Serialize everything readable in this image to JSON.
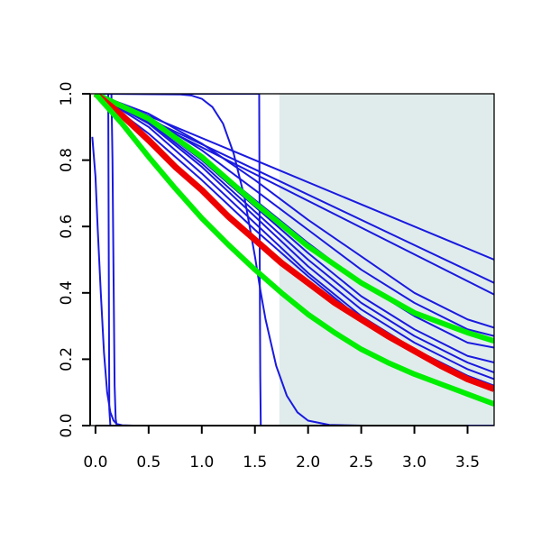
{
  "chart_data": {
    "type": "line",
    "title": "",
    "xlabel": "",
    "ylabel": "",
    "xlim": [
      -0.05,
      3.75
    ],
    "ylim": [
      0.0,
      1.0
    ],
    "x_ticks": [
      "0.0",
      "0.5",
      "1.0",
      "1.5",
      "2.0",
      "2.5",
      "3.0",
      "3.5"
    ],
    "y_ticks": [
      "0.0",
      "0.2",
      "0.4",
      "0.6",
      "0.8",
      "1.0"
    ],
    "shaded_region": {
      "x_from": 1.73,
      "x_to": 3.75,
      "color": "#e0ecec"
    },
    "grid": false,
    "legend": "none",
    "colors": {
      "blue": "#1a1adf",
      "red": "#ee0000",
      "green": "#00ee00"
    },
    "series": [
      {
        "color": "blue",
        "width": 2,
        "points": [
          [
            -0.03,
            0.87
          ],
          [
            0.0,
            0.75
          ],
          [
            0.02,
            0.6
          ],
          [
            0.05,
            0.4
          ],
          [
            0.08,
            0.22
          ],
          [
            0.11,
            0.1
          ],
          [
            0.14,
            0.04
          ],
          [
            0.17,
            0.015
          ],
          [
            0.2,
            0.005
          ],
          [
            0.25,
            0.001
          ],
          [
            0.35,
            0.0
          ],
          [
            3.75,
            0.0
          ]
        ]
      },
      {
        "color": "blue",
        "width": 2,
        "points": [
          [
            0.0,
            1.0
          ],
          [
            0.15,
            1.0
          ],
          [
            0.16,
            0.8
          ],
          [
            0.17,
            0.45
          ],
          [
            0.18,
            0.12
          ],
          [
            0.19,
            0.02
          ],
          [
            0.2,
            0.0
          ],
          [
            3.75,
            0.0
          ]
        ]
      },
      {
        "color": "blue",
        "width": 2,
        "points": [
          [
            0.1,
            1.0
          ],
          [
            0.12,
            1.0
          ],
          [
            0.125,
            0.5
          ],
          [
            0.13,
            0.05
          ],
          [
            0.14,
            0.0
          ]
        ]
      },
      {
        "color": "blue",
        "width": 2,
        "points": [
          [
            0.0,
            1.0
          ],
          [
            1.54,
            1.0
          ],
          [
            1.545,
            0.5
          ],
          [
            1.55,
            0.15
          ],
          [
            1.555,
            0.0
          ]
        ]
      },
      {
        "color": "blue",
        "width": 2,
        "points": [
          [
            0.0,
            1.0
          ],
          [
            0.8,
            0.998
          ],
          [
            0.9,
            0.995
          ],
          [
            1.0,
            0.985
          ],
          [
            1.1,
            0.96
          ],
          [
            1.2,
            0.91
          ],
          [
            1.3,
            0.82
          ],
          [
            1.4,
            0.69
          ],
          [
            1.5,
            0.51
          ],
          [
            1.55,
            0.41
          ],
          [
            1.6,
            0.32
          ],
          [
            1.7,
            0.18
          ],
          [
            1.8,
            0.09
          ],
          [
            1.9,
            0.04
          ],
          [
            2.0,
            0.015
          ],
          [
            2.2,
            0.002
          ],
          [
            2.5,
            0.0
          ],
          [
            3.75,
            0.0
          ]
        ]
      },
      {
        "color": "blue",
        "width": 2,
        "points": [
          [
            0.0,
            1.0
          ],
          [
            3.75,
            0.5
          ]
        ]
      },
      {
        "color": "blue",
        "width": 2,
        "points": [
          [
            0.0,
            1.0
          ],
          [
            3.75,
            0.43
          ]
        ]
      },
      {
        "color": "blue",
        "width": 2,
        "points": [
          [
            0.0,
            1.0
          ],
          [
            3.75,
            0.395
          ]
        ]
      },
      {
        "color": "blue",
        "width": 2,
        "points": [
          [
            0.0,
            1.0
          ],
          [
            0.5,
            0.94
          ],
          [
            1.0,
            0.85
          ],
          [
            1.5,
            0.74
          ],
          [
            2.0,
            0.62
          ],
          [
            2.5,
            0.51
          ],
          [
            3.0,
            0.4
          ],
          [
            3.5,
            0.32
          ],
          [
            3.75,
            0.295
          ]
        ]
      },
      {
        "color": "blue",
        "width": 2,
        "points": [
          [
            0.0,
            1.0
          ],
          [
            0.5,
            0.93
          ],
          [
            1.0,
            0.83
          ],
          [
            1.5,
            0.71
          ],
          [
            2.0,
            0.59
          ],
          [
            2.5,
            0.47
          ],
          [
            3.0,
            0.37
          ],
          [
            3.5,
            0.29
          ],
          [
            3.75,
            0.27
          ]
        ]
      },
      {
        "color": "blue",
        "width": 2,
        "points": [
          [
            0.0,
            1.0
          ],
          [
            0.5,
            0.925
          ],
          [
            1.0,
            0.81
          ],
          [
            1.5,
            0.68
          ],
          [
            2.0,
            0.55
          ],
          [
            2.5,
            0.43
          ],
          [
            3.0,
            0.33
          ],
          [
            3.5,
            0.25
          ],
          [
            3.75,
            0.235
          ]
        ]
      },
      {
        "color": "blue",
        "width": 2,
        "points": [
          [
            0.0,
            1.0
          ],
          [
            0.5,
            0.92
          ],
          [
            1.0,
            0.8
          ],
          [
            1.5,
            0.66
          ],
          [
            2.0,
            0.52
          ],
          [
            2.5,
            0.39
          ],
          [
            3.0,
            0.29
          ],
          [
            3.5,
            0.21
          ],
          [
            3.75,
            0.19
          ]
        ]
      },
      {
        "color": "blue",
        "width": 2,
        "points": [
          [
            0.0,
            1.0
          ],
          [
            0.5,
            0.915
          ],
          [
            1.0,
            0.79
          ],
          [
            1.5,
            0.645
          ],
          [
            2.0,
            0.5
          ],
          [
            2.5,
            0.37
          ],
          [
            3.0,
            0.27
          ],
          [
            3.5,
            0.19
          ],
          [
            3.75,
            0.16
          ]
        ]
      },
      {
        "color": "blue",
        "width": 2,
        "points": [
          [
            0.0,
            1.0
          ],
          [
            0.5,
            0.91
          ],
          [
            1.0,
            0.78
          ],
          [
            1.5,
            0.63
          ],
          [
            2.0,
            0.48
          ],
          [
            2.5,
            0.35
          ],
          [
            3.0,
            0.25
          ],
          [
            3.5,
            0.17
          ],
          [
            3.75,
            0.14
          ]
        ]
      },
      {
        "color": "blue",
        "width": 2,
        "points": [
          [
            0.0,
            1.0
          ],
          [
            0.5,
            0.9
          ],
          [
            1.0,
            0.76
          ],
          [
            1.5,
            0.61
          ],
          [
            2.0,
            0.46
          ],
          [
            2.5,
            0.33
          ],
          [
            3.0,
            0.23
          ],
          [
            3.5,
            0.15
          ],
          [
            3.75,
            0.12
          ]
        ]
      },
      {
        "color": "blue",
        "width": 2,
        "points": [
          [
            0.0,
            1.0
          ],
          [
            0.5,
            0.88
          ],
          [
            1.0,
            0.74
          ],
          [
            1.5,
            0.59
          ],
          [
            2.0,
            0.45
          ],
          [
            2.5,
            0.32
          ],
          [
            3.0,
            0.22
          ],
          [
            3.5,
            0.15
          ],
          [
            3.75,
            0.12
          ]
        ]
      },
      {
        "color": "green",
        "width": 6,
        "points": [
          [
            0.0,
            1.0
          ],
          [
            0.5,
            0.925
          ],
          [
            1.0,
            0.81
          ],
          [
            1.5,
            0.67
          ],
          [
            2.0,
            0.54
          ],
          [
            2.5,
            0.43
          ],
          [
            3.0,
            0.34
          ],
          [
            3.5,
            0.28
          ],
          [
            3.75,
            0.255
          ]
        ]
      },
      {
        "color": "red",
        "width": 7,
        "points": [
          [
            0.0,
            1.0
          ],
          [
            0.25,
            0.935
          ],
          [
            0.5,
            0.86
          ],
          [
            0.75,
            0.78
          ],
          [
            1.0,
            0.71
          ],
          [
            1.25,
            0.63
          ],
          [
            1.5,
            0.56
          ],
          [
            1.75,
            0.49
          ],
          [
            2.0,
            0.43
          ],
          [
            2.25,
            0.37
          ],
          [
            2.5,
            0.32
          ],
          [
            2.75,
            0.27
          ],
          [
            3.0,
            0.225
          ],
          [
            3.25,
            0.18
          ],
          [
            3.5,
            0.14
          ],
          [
            3.75,
            0.11
          ]
        ]
      },
      {
        "color": "green",
        "width": 6,
        "points": [
          [
            0.0,
            1.0
          ],
          [
            0.25,
            0.91
          ],
          [
            0.5,
            0.81
          ],
          [
            0.75,
            0.715
          ],
          [
            1.0,
            0.625
          ],
          [
            1.25,
            0.545
          ],
          [
            1.5,
            0.47
          ],
          [
            1.75,
            0.4
          ],
          [
            2.0,
            0.335
          ],
          [
            2.25,
            0.28
          ],
          [
            2.5,
            0.23
          ],
          [
            2.75,
            0.19
          ],
          [
            3.0,
            0.155
          ],
          [
            3.25,
            0.125
          ],
          [
            3.5,
            0.095
          ],
          [
            3.75,
            0.065
          ]
        ]
      }
    ]
  }
}
